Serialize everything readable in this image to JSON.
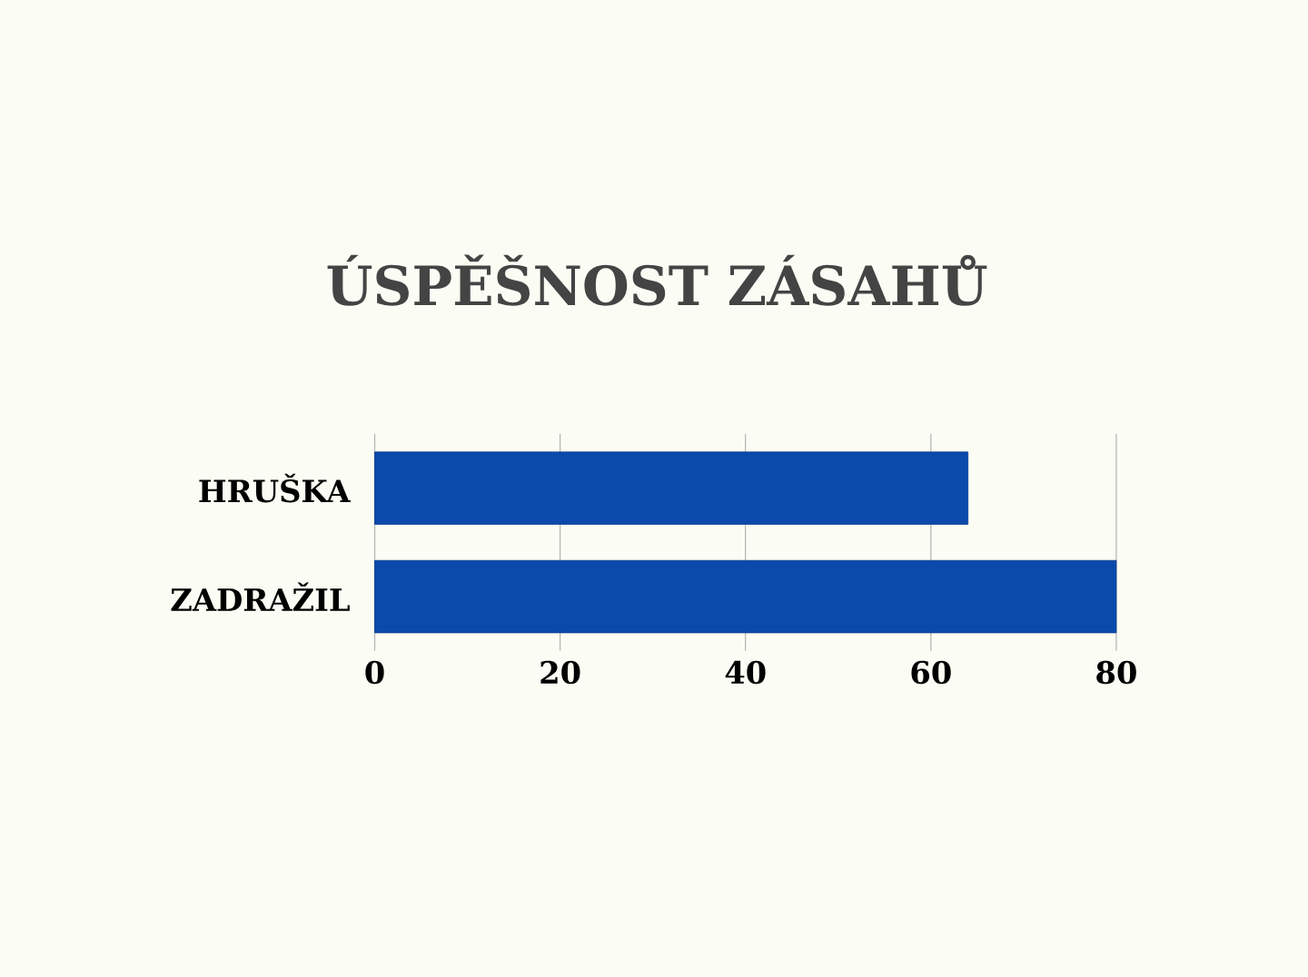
{
  "chart_data": {
    "type": "bar",
    "orientation": "horizontal",
    "title": "ÚSPĚŠNOST ZÁSAHŮ",
    "categories": [
      "HRUŠKA",
      "ZADRAŽIL"
    ],
    "values": [
      64,
      80
    ],
    "color": "#0b4aab",
    "xlim": [
      0,
      80
    ],
    "xticks": [
      0,
      20,
      40,
      60,
      80
    ],
    "grid": "x"
  }
}
